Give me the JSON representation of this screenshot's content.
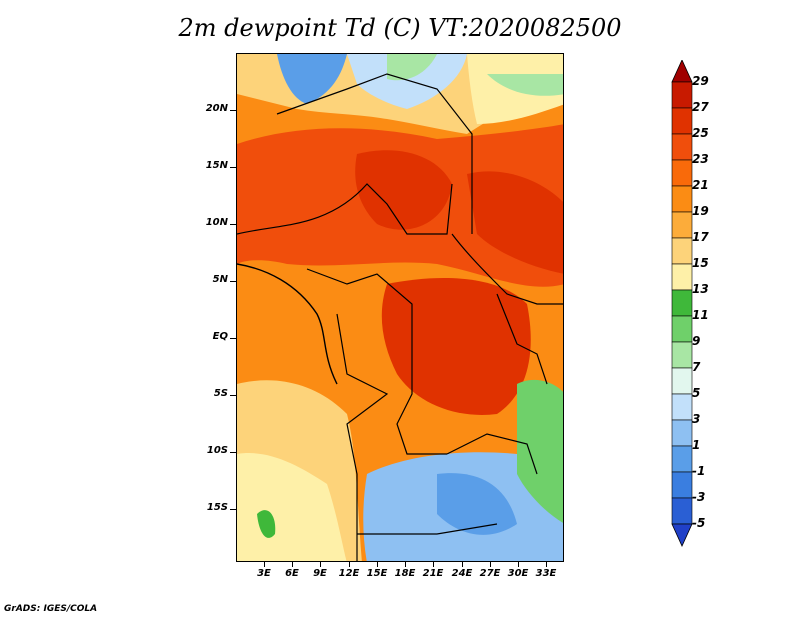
{
  "title": "2m dewpoint Td (C) VT:2020082500",
  "footer": "GrADS: IGES/COLA",
  "y_axis_labels": [
    "20N",
    "15N",
    "10N",
    "5N",
    "EQ",
    "5S",
    "10S",
    "15S"
  ],
  "x_axis_labels": [
    "3E",
    "6E",
    "9E",
    "12E",
    "15E",
    "18E",
    "21E",
    "24E",
    "27E",
    "30E",
    "33E"
  ],
  "colorbar": {
    "labels": [
      "29",
      "27",
      "25",
      "23",
      "21",
      "19",
      "17",
      "15",
      "13",
      "11",
      "9",
      "7",
      "5",
      "3",
      "1",
      "-1",
      "-3",
      "-5"
    ],
    "colors": [
      "#a00000",
      "#c81a00",
      "#e03200",
      "#f04e0c",
      "#f96a0a",
      "#fb8c14",
      "#fcac3a",
      "#fdd37a",
      "#fef0a8",
      "#3fb83a",
      "#6fd06a",
      "#a8e6a4",
      "#e2f7ee",
      "#c2e0fa",
      "#8ec0f2",
      "#5a9ee8",
      "#3a7ee0",
      "#2a5fd4",
      "#2040c8"
    ]
  },
  "map": {
    "lat_range": [
      -19.5,
      24.5
    ],
    "lon_range": [
      0,
      34.5
    ]
  }
}
